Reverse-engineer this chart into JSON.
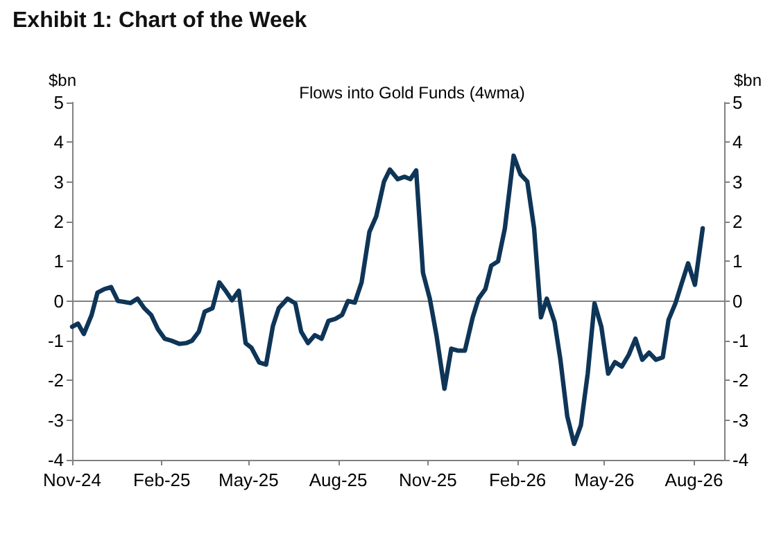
{
  "chart_data": {
    "type": "line",
    "title": "Exhibit 1: Chart of the Week",
    "subtitle": "Flows into Gold Funds (4wma)",
    "ylabel": "$bn",
    "y2label": "$bn",
    "x": [
      "2024-11-01",
      "2024-11-07",
      "2024-11-13",
      "2024-11-21",
      "2024-11-27",
      "2024-12-04",
      "2024-12-11",
      "2024-12-18",
      "2024-12-24",
      "2024-12-31",
      "2025-01-07",
      "2025-01-14",
      "2025-01-21",
      "2025-01-28",
      "2025-02-04",
      "2025-02-11",
      "2025-02-19",
      "2025-02-26",
      "2025-03-04",
      "2025-03-11",
      "2025-03-17",
      "2025-03-25",
      "2025-04-01",
      "2025-04-08",
      "2025-04-14",
      "2025-04-21",
      "2025-04-28",
      "2025-05-04",
      "2025-05-12",
      "2025-05-19",
      "2025-05-26",
      "2025-06-01",
      "2025-06-10",
      "2025-06-18",
      "2025-06-24",
      "2025-07-01",
      "2025-07-08",
      "2025-07-15",
      "2025-07-22",
      "2025-07-29",
      "2025-08-05",
      "2025-08-11",
      "2025-08-18",
      "2025-08-25",
      "2025-09-02",
      "2025-09-09",
      "2025-09-17",
      "2025-09-23",
      "2025-10-01",
      "2025-10-08",
      "2025-10-14",
      "2025-10-20",
      "2025-10-27",
      "2025-11-03",
      "2025-11-10",
      "2025-11-18",
      "2025-11-25",
      "2025-12-02",
      "2025-12-09",
      "2025-12-17",
      "2025-12-23",
      "2025-12-30",
      "2026-01-05",
      "2026-01-12",
      "2026-01-19",
      "2026-01-28",
      "2026-02-04",
      "2026-02-11",
      "2026-02-18",
      "2026-02-25",
      "2026-03-03",
      "2026-03-11",
      "2026-03-17",
      "2026-03-24",
      "2026-03-31",
      "2026-04-07",
      "2026-04-14",
      "2026-04-21",
      "2026-04-28",
      "2026-05-05",
      "2026-05-12",
      "2026-05-19",
      "2026-05-26",
      "2026-06-02",
      "2026-06-09",
      "2026-06-16",
      "2026-06-23",
      "2026-06-30",
      "2026-07-06",
      "2026-07-13",
      "2026-07-19",
      "2026-07-26",
      "2026-08-02",
      "2026-08-10"
    ],
    "series": [
      {
        "color": "#0e3557",
        "values": [
          -0.65,
          -0.57,
          -0.83,
          -0.35,
          0.21,
          0.3,
          0.35,
          0.0,
          -0.02,
          -0.05,
          0.06,
          -0.18,
          -0.35,
          -0.71,
          -0.95,
          -1.0,
          -1.08,
          -1.06,
          -1.0,
          -0.77,
          -0.27,
          -0.18,
          0.47,
          0.24,
          0.02,
          0.26,
          -1.06,
          -1.18,
          -1.55,
          -1.6,
          -0.63,
          -0.18,
          0.06,
          -0.06,
          -0.77,
          -1.06,
          -0.86,
          -0.95,
          -0.5,
          -0.45,
          -0.35,
          0.0,
          -0.04,
          0.47,
          1.74,
          2.13,
          3.01,
          3.31,
          3.07,
          3.13,
          3.07,
          3.29,
          0.71,
          0.06,
          -0.89,
          -2.21,
          -1.2,
          -1.25,
          -1.25,
          -0.41,
          0.06,
          0.3,
          0.89,
          1.0,
          1.83,
          3.66,
          3.19,
          3.01,
          1.83,
          -0.41,
          0.06,
          -0.53,
          -1.48,
          -2.9,
          -3.6,
          -3.13,
          -1.83,
          -0.06,
          -0.65,
          -1.83,
          -1.54,
          -1.65,
          -1.36,
          -0.95,
          -1.48,
          -1.3,
          -1.48,
          -1.42,
          -0.47,
          -0.06,
          0.41,
          0.95,
          0.41,
          1.83
        ]
      }
    ],
    "xlim": [
      "2024-11-01",
      "2026-09-01"
    ],
    "xticks": [
      {
        "value": "2024-11-01",
        "label": "Nov-24"
      },
      {
        "value": "2025-02-01",
        "label": "Feb-25"
      },
      {
        "value": "2025-05-01",
        "label": "May-25"
      },
      {
        "value": "2025-08-01",
        "label": "Aug-25"
      },
      {
        "value": "2025-11-01",
        "label": "Nov-25"
      },
      {
        "value": "2026-02-01",
        "label": "Feb-26"
      },
      {
        "value": "2026-05-01",
        "label": "May-26"
      },
      {
        "value": "2026-08-01",
        "label": "Aug-26"
      }
    ],
    "ylim": [
      -4,
      5
    ],
    "yticks": [
      -4,
      -3,
      -2,
      -1,
      0,
      1,
      2,
      3,
      4,
      5
    ],
    "y2lim": [
      -4,
      5
    ],
    "y2ticks": [
      -4,
      -3,
      -2,
      -1,
      0,
      1,
      2,
      3,
      4,
      5
    ],
    "ref_lines": [
      {
        "axis": "y",
        "value": 0,
        "color": "#808080"
      }
    ],
    "grid": false,
    "marker": "none",
    "line_style": "solid"
  }
}
